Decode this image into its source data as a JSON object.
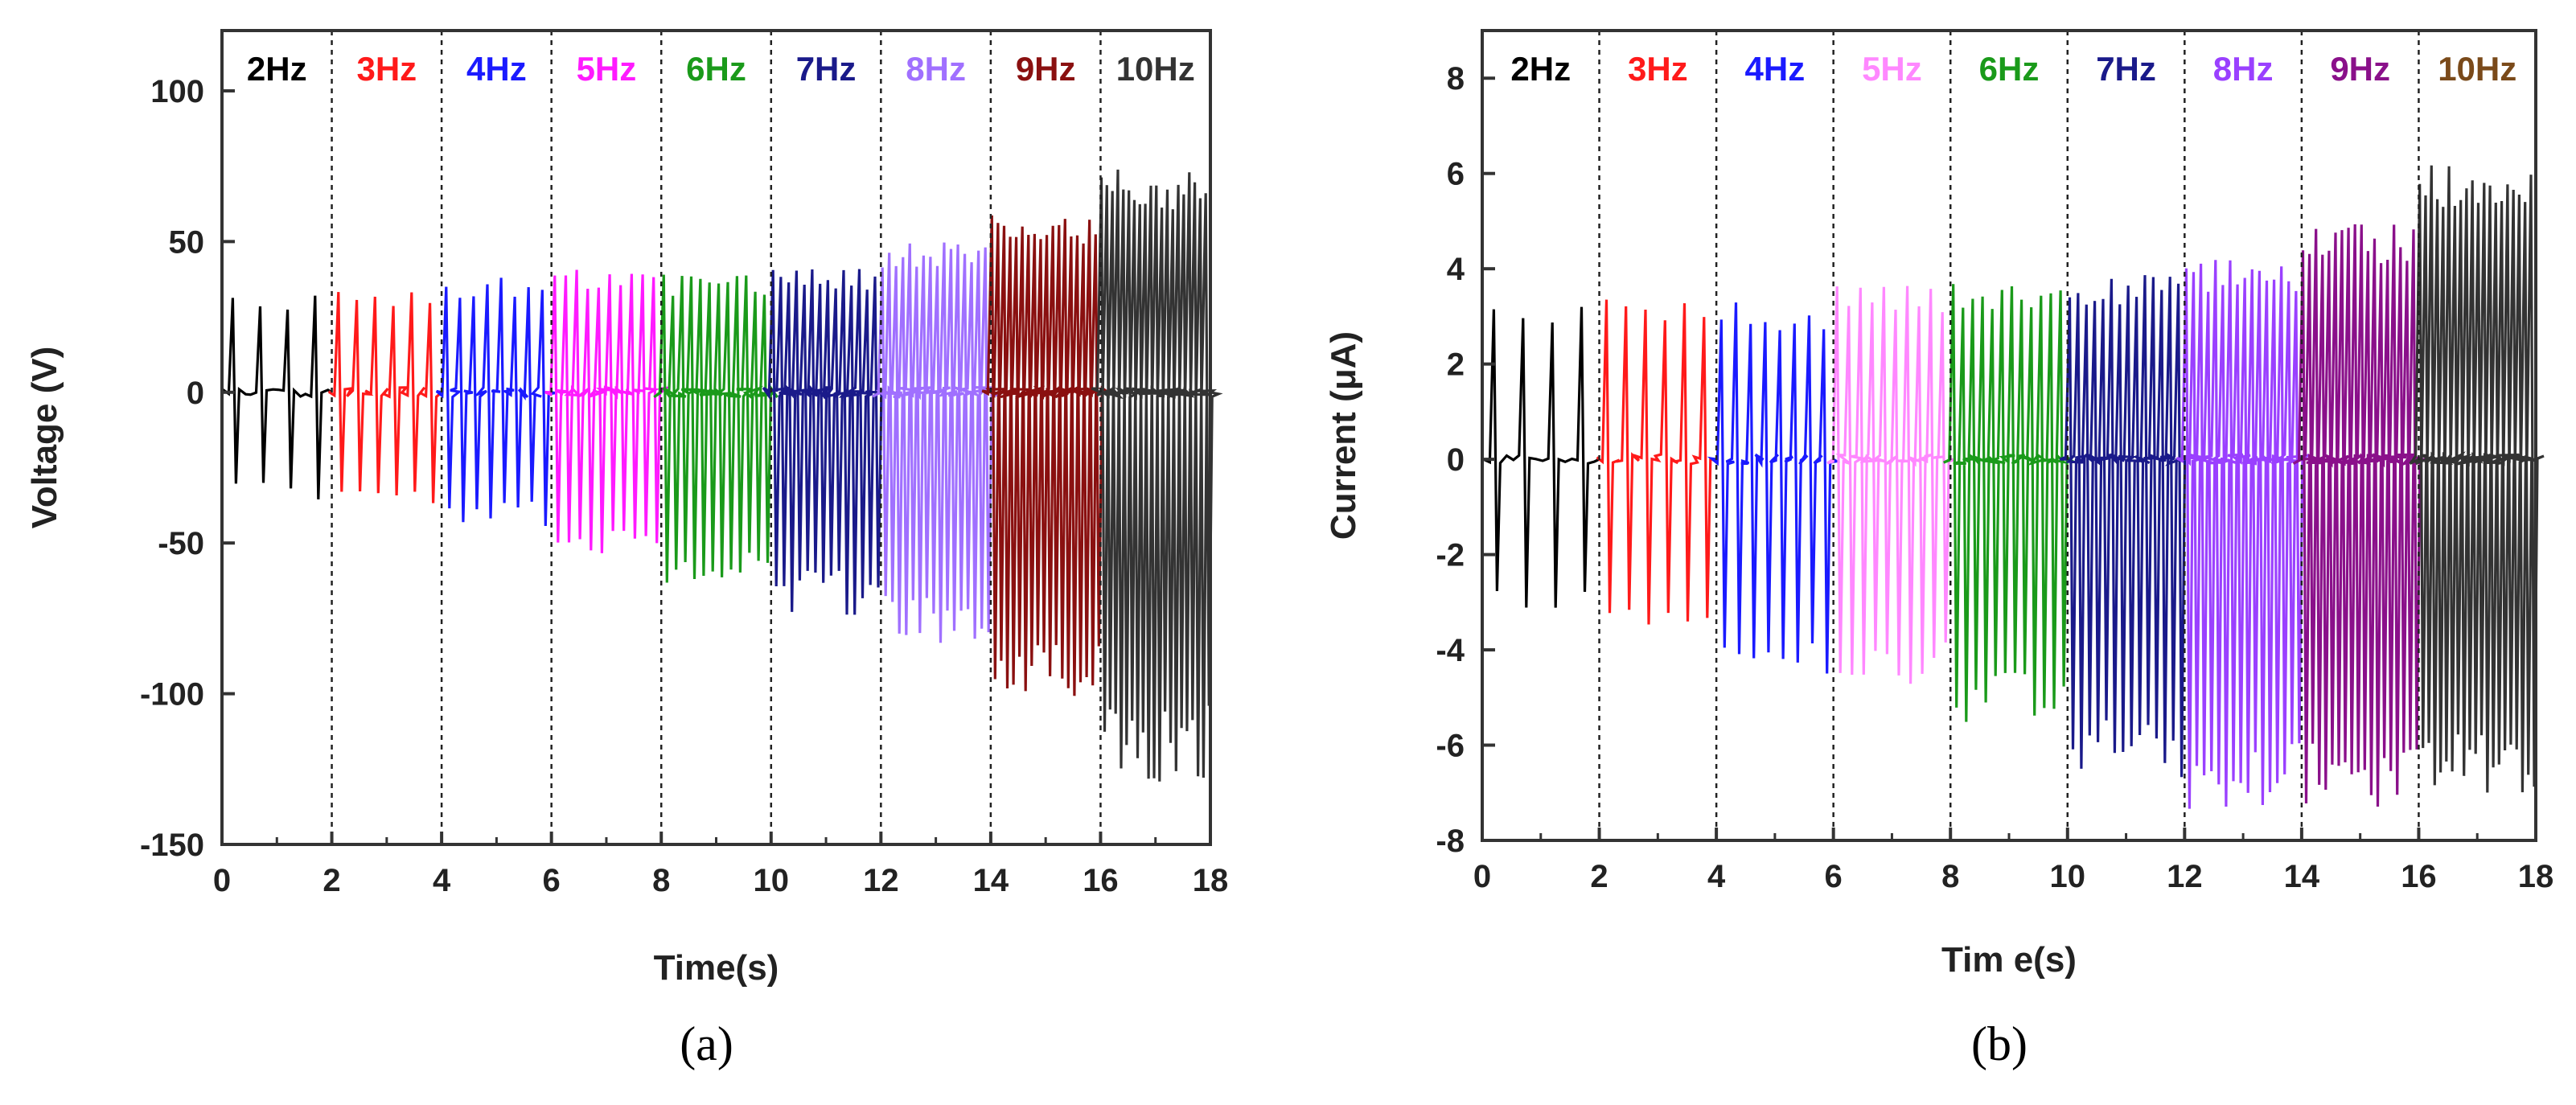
{
  "chart_data": [
    {
      "type": "line",
      "panel_label": "(a)",
      "xlabel": "Time(s)",
      "ylabel": "Voltage (V)",
      "xlim": [
        0,
        18
      ],
      "ylim": [
        -150,
        120
      ],
      "xticks": [
        0,
        2,
        4,
        6,
        8,
        10,
        12,
        14,
        16,
        18
      ],
      "yticks": [
        100,
        50,
        0,
        -50,
        -100,
        -150
      ],
      "band_boundaries": [
        2,
        4,
        6,
        8,
        10,
        12,
        14,
        16
      ],
      "series": [
        {
          "name": "2Hz",
          "t_start": 0,
          "t_end": 2,
          "peak_max": 33,
          "peak_min": -36,
          "color": "#000000"
        },
        {
          "name": "3Hz",
          "t_start": 2,
          "t_end": 4,
          "peak_max": 34,
          "peak_min": -37,
          "color": "#ff1a1a"
        },
        {
          "name": "4Hz",
          "t_start": 4,
          "t_end": 6,
          "peak_max": 38,
          "peak_min": -45,
          "color": "#1a1aff"
        },
        {
          "name": "5Hz",
          "t_start": 6,
          "t_end": 8,
          "peak_max": 41,
          "peak_min": -54,
          "color": "#ff1aff"
        },
        {
          "name": "6Hz",
          "t_start": 8,
          "t_end": 10,
          "peak_max": 39,
          "peak_min": -64,
          "color": "#1a9a1a"
        },
        {
          "name": "7Hz",
          "t_start": 10,
          "t_end": 12,
          "peak_max": 41,
          "peak_min": -74,
          "color": "#1a1a8a"
        },
        {
          "name": "8Hz",
          "t_start": 12,
          "t_end": 14,
          "peak_max": 50,
          "peak_min": -84,
          "color": "#a070ff"
        },
        {
          "name": "9Hz",
          "t_start": 14,
          "t_end": 16,
          "peak_max": 60,
          "peak_min": -101,
          "color": "#8a1010"
        },
        {
          "name": "10Hz",
          "t_start": 16,
          "t_end": 18,
          "peak_max": 74,
          "peak_min": -130,
          "color": "#333333"
        }
      ]
    },
    {
      "type": "line",
      "panel_label": "(b)",
      "xlabel": "Tim e(s)",
      "ylabel": "Current (μA)",
      "xlim": [
        0,
        18
      ],
      "ylim": [
        -8,
        9
      ],
      "xticks": [
        0,
        2,
        4,
        6,
        8,
        10,
        12,
        14,
        16,
        18
      ],
      "yticks": [
        8,
        6,
        4,
        2,
        0,
        -2,
        -4,
        -6,
        -8
      ],
      "band_boundaries": [
        2,
        4,
        6,
        8,
        10,
        12,
        14,
        16
      ],
      "series": [
        {
          "name": "2Hz",
          "t_start": 0,
          "t_end": 2,
          "peak_max": 3.3,
          "peak_min": -3.3,
          "color": "#000000"
        },
        {
          "name": "3Hz",
          "t_start": 2,
          "t_end": 4,
          "peak_max": 3.4,
          "peak_min": -3.6,
          "color": "#ff1a1a"
        },
        {
          "name": "4Hz",
          "t_start": 4,
          "t_end": 6,
          "peak_max": 3.3,
          "peak_min": -4.6,
          "color": "#1a1aff"
        },
        {
          "name": "5Hz",
          "t_start": 6,
          "t_end": 8,
          "peak_max": 3.7,
          "peak_min": -4.8,
          "color": "#ff88ff"
        },
        {
          "name": "6Hz",
          "t_start": 8,
          "t_end": 10,
          "peak_max": 3.7,
          "peak_min": -5.6,
          "color": "#1a9a1a"
        },
        {
          "name": "7Hz",
          "t_start": 10,
          "t_end": 12,
          "peak_max": 3.9,
          "peak_min": -6.8,
          "color": "#1a1a8a"
        },
        {
          "name": "8Hz",
          "t_start": 12,
          "t_end": 14,
          "peak_max": 4.2,
          "peak_min": -7.4,
          "color": "#9a40ff"
        },
        {
          "name": "9Hz",
          "t_start": 14,
          "t_end": 16,
          "peak_max": 5.0,
          "peak_min": -7.4,
          "color": "#8a108a"
        },
        {
          "name": "10Hz",
          "t_start": 16,
          "t_end": 18,
          "peak_max": 6.4,
          "peak_min": -7.2,
          "color": "#333333"
        }
      ],
      "label_colors": [
        "#000000",
        "#ff1a1a",
        "#1a1aff",
        "#ff88ff",
        "#1a9a1a",
        "#1a1a8a",
        "#9a40ff",
        "#8a108a",
        "#7a4a1a"
      ]
    }
  ]
}
